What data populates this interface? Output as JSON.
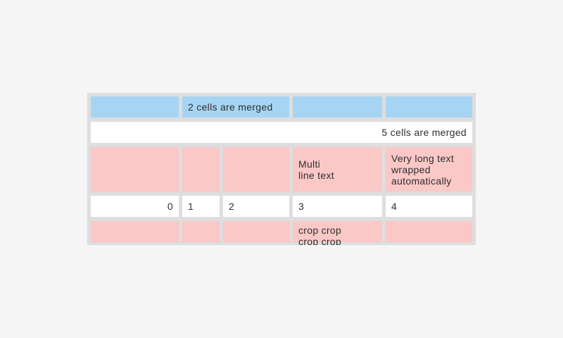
{
  "colors": {
    "page_bg": "#f5f5f5",
    "table_bg": "#dedede",
    "cell_blue": "#a6d5f4",
    "cell_pink": "#fac8c7",
    "cell_white": "#ffffff",
    "text": "#2e2e2e"
  },
  "table": {
    "rows": [
      {
        "cells": [
          {
            "text": ""
          },
          {
            "text": "2 cells are merged"
          },
          {
            "text": ""
          },
          {
            "text": ""
          }
        ]
      },
      {
        "cells": [
          {
            "text": "5 cells are merged"
          }
        ]
      },
      {
        "cells": [
          {
            "text": ""
          },
          {
            "text": ""
          },
          {
            "text": ""
          },
          {
            "text": "Multi\nline text"
          },
          {
            "text": "Very long text wrapped automatically"
          }
        ]
      },
      {
        "cells": [
          {
            "text": "0"
          },
          {
            "text": "1"
          },
          {
            "text": "2"
          },
          {
            "text": "3"
          },
          {
            "text": "4"
          }
        ]
      },
      {
        "cells": [
          {
            "text": ""
          },
          {
            "text": ""
          },
          {
            "text": ""
          },
          {
            "text": "crop crop\ncrop crop"
          },
          {
            "text": ""
          }
        ]
      }
    ]
  }
}
